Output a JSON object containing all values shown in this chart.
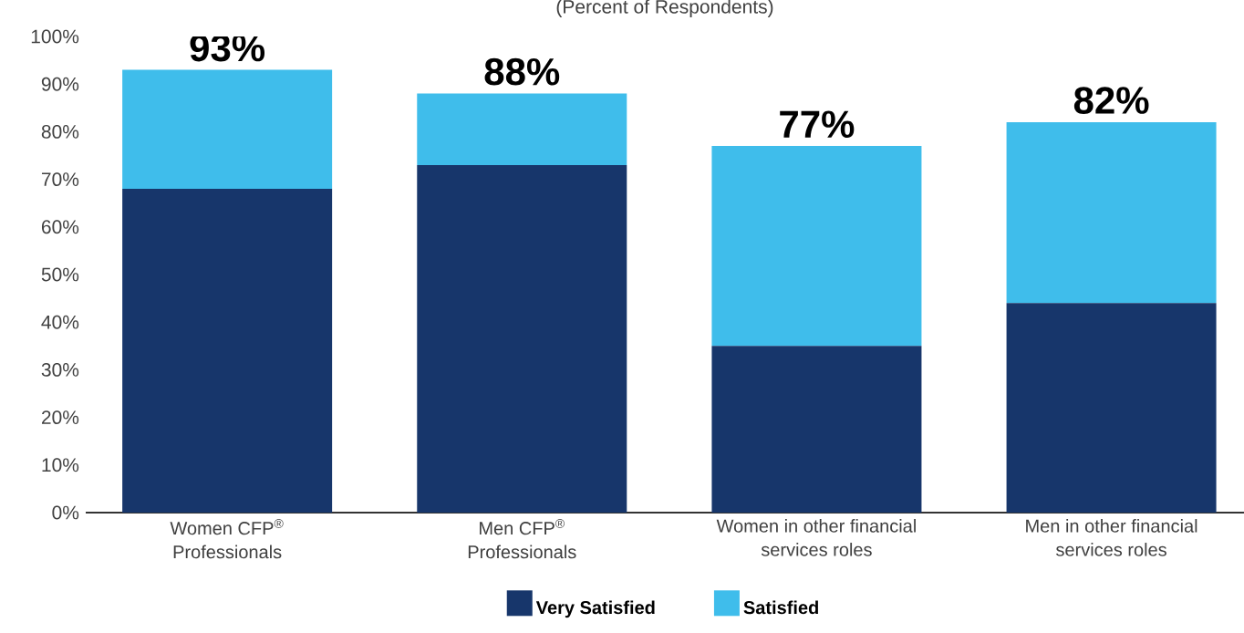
{
  "chart_data": {
    "type": "bar",
    "subtitle": "(Percent of Respondents)",
    "categories": [
      "Women CFP$^{®}$ Professionals",
      "Men CFP$^{®}$ Professionals",
      "Women in other financial services roles",
      "Men in other financial services roles"
    ],
    "stacked": true,
    "series": [
      {
        "name": "Very Satisfied",
        "color": "#17366b",
        "values": [
          68,
          73,
          35,
          44
        ]
      },
      {
        "name": "Satisfied",
        "color": "#3fbdeb",
        "values": [
          25,
          15,
          42,
          38
        ]
      }
    ],
    "totals": [
      "93%",
      "88%",
      "77%",
      "82%"
    ],
    "ylim": [
      0,
      100
    ],
    "yticks": [
      {
        "value": 0,
        "label": "0%"
      },
      {
        "value": 10,
        "label": "10%"
      },
      {
        "value": 20,
        "label": "20%"
      },
      {
        "value": 30,
        "label": "30%"
      },
      {
        "value": 40,
        "label": "40%"
      },
      {
        "value": 50,
        "label": "50%"
      },
      {
        "value": 60,
        "label": "60%"
      },
      {
        "value": 70,
        "label": "70%"
      },
      {
        "value": 80,
        "label": "80%"
      },
      {
        "value": 90,
        "label": "90%"
      },
      {
        "value": 100,
        "label": "100%"
      }
    ],
    "legend": "bottom"
  }
}
